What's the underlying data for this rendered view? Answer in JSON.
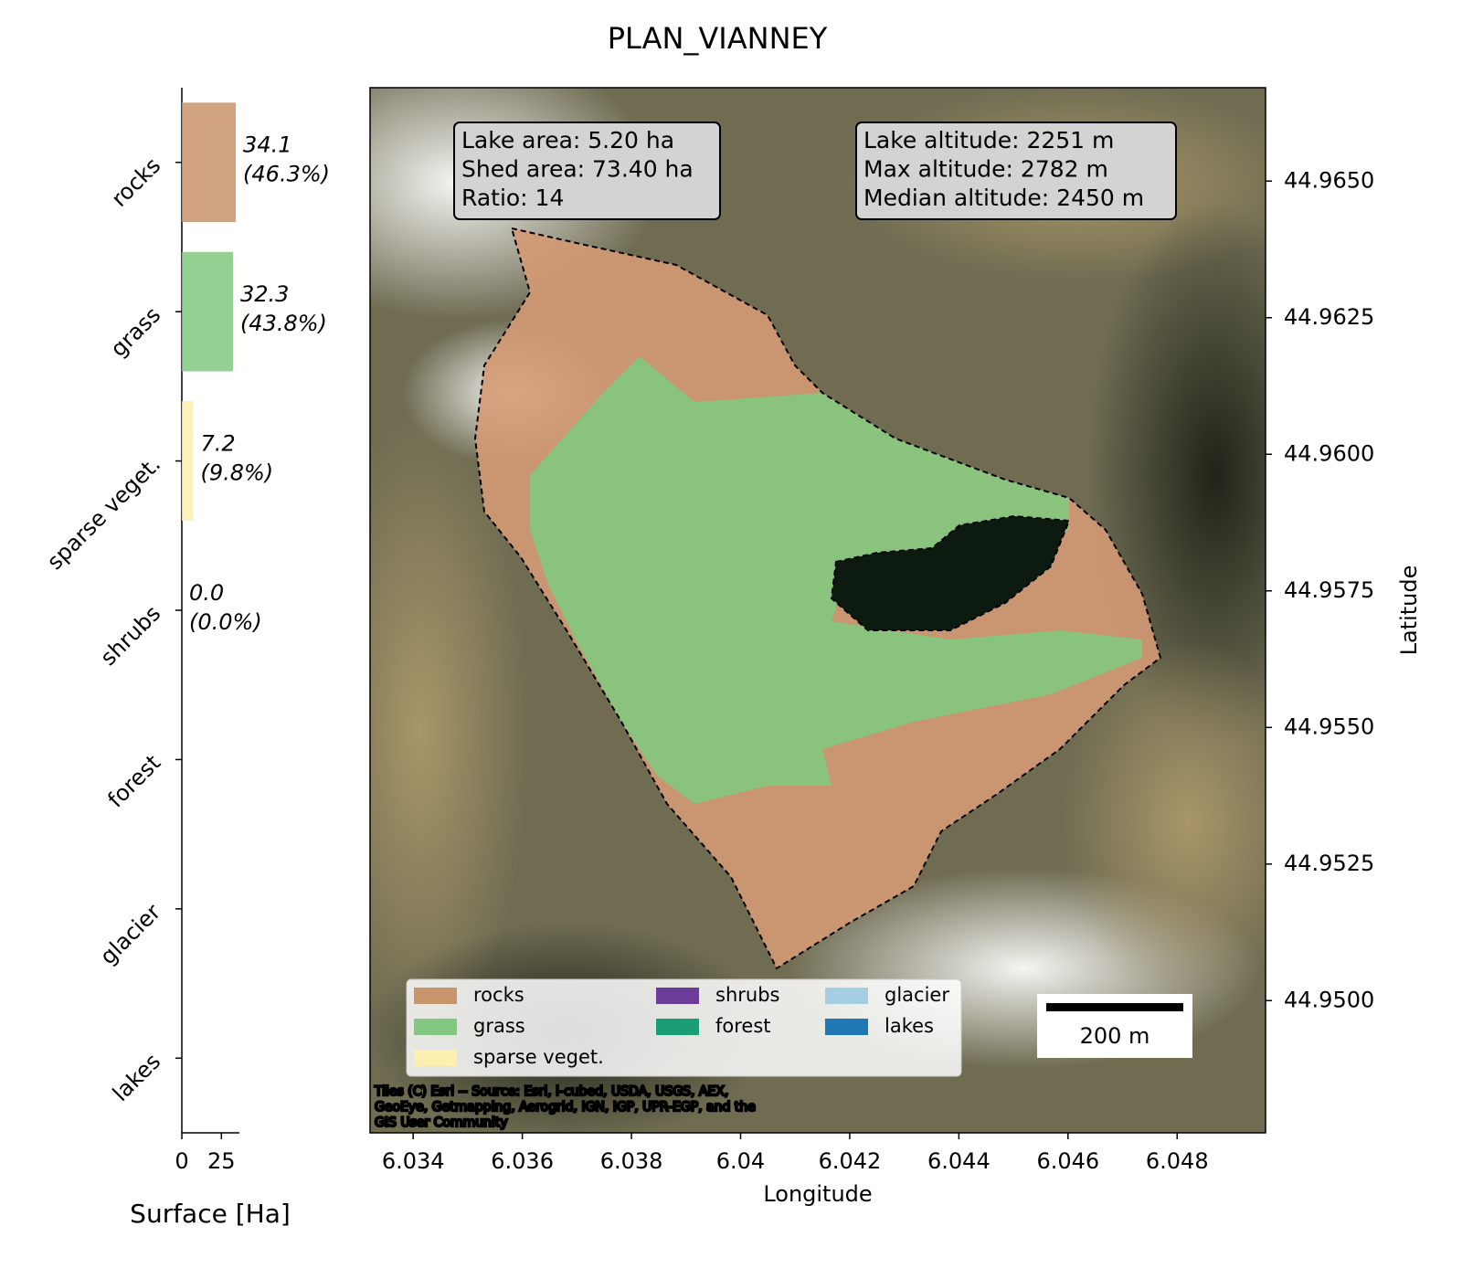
{
  "chart_data": [
    {
      "type": "barh",
      "categories": [
        "rocks",
        "grass",
        "sparse veget.",
        "shrubs",
        "forest",
        "glacier",
        "lakes"
      ],
      "values": [
        34.1,
        32.3,
        7.2,
        0.0,
        null,
        null,
        null
      ],
      "value_labels": [
        [
          "34.1",
          "(46.3%)"
        ],
        [
          "32.3",
          "(43.8%)"
        ],
        [
          "7.2",
          "(9.8%)"
        ],
        [
          "0.0",
          "(0.0%)"
        ],
        null,
        null,
        null
      ],
      "colors": [
        "#c8946c",
        "#82c880",
        "#fbf0b0",
        "#6a3d9a",
        "#1b9e77",
        "#a6cee3",
        "#1f78b4"
      ],
      "xlabel": "Surface [Ha]",
      "xlim": [
        0,
        35.8
      ],
      "xticks": [
        0,
        25
      ]
    },
    {
      "type": "map",
      "title": "PLAN_VIANNEY",
      "xlabel": "Longitude",
      "ylabel": "Latitude",
      "xlim": [
        6.03321,
        6.04962
      ],
      "ylim": [
        44.94758,
        44.96671
      ],
      "xticks": [
        6.034,
        6.036,
        6.038,
        6.04,
        6.042,
        6.044,
        6.046,
        6.048
      ],
      "yticks": [
        {
          "value": 44.965,
          "label": "44.9650"
        },
        44.9625,
        {
          "value": 44.96,
          "label": "44.9600"
        },
        44.9575,
        {
          "value": 44.955,
          "label": "44.9550"
        },
        44.9525,
        {
          "value": 44.95,
          "label": "44.9500"
        }
      ],
      "annotations": [
        [
          "Lake area: 5.20 ha",
          "Shed area: 73.40 ha",
          "Ratio: 14"
        ],
        [
          "Lake altitude: 2251 m",
          "Max altitude: 2782 m",
          "Median altitude: 2450 m"
        ]
      ],
      "scale_bar": "200 m",
      "attribution": [
        "Tiles (C) Esri -- Source: Esri, i-cubed, USDA, USGS, AEX,",
        "GeoEye, Getmapping, Aerogrid, IGN, IGP, UPR-EGP, and the",
        "GIS User Community"
      ]
    }
  ]
}
